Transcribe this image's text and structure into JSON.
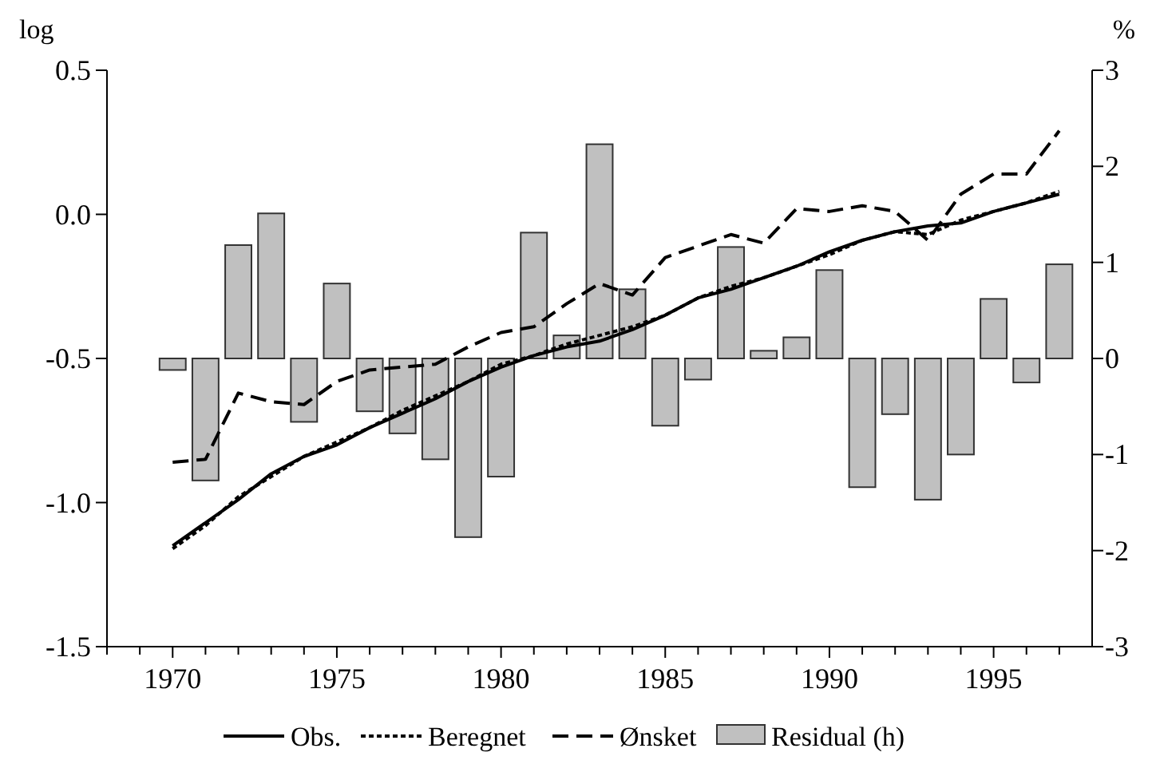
{
  "chart_data": {
    "type": "line",
    "ylabel": "log",
    "y2label": "%",
    "x": [
      1970,
      1971,
      1972,
      1973,
      1974,
      1975,
      1976,
      1977,
      1978,
      1979,
      1980,
      1981,
      1982,
      1983,
      1984,
      1985,
      1986,
      1987,
      1988,
      1989,
      1990,
      1991,
      1992,
      1993,
      1994,
      1995,
      1996,
      1997
    ],
    "series": [
      {
        "name": "Obs.",
        "line_style": "solid",
        "color": "#000000",
        "values": [
          -1.15,
          -1.07,
          -0.99,
          -0.9,
          -0.84,
          -0.8,
          -0.74,
          -0.69,
          -0.64,
          -0.58,
          -0.53,
          -0.49,
          -0.46,
          -0.44,
          -0.4,
          -0.35,
          -0.29,
          -0.26,
          -0.22,
          -0.18,
          -0.13,
          -0.09,
          -0.06,
          -0.04,
          -0.03,
          0.01,
          0.04,
          0.07
        ]
      },
      {
        "name": "Beregnet",
        "line_style": "dotted",
        "color": "#000000",
        "values": [
          -1.16,
          -1.08,
          -0.98,
          -0.91,
          -0.84,
          -0.79,
          -0.74,
          -0.68,
          -0.63,
          -0.58,
          -0.52,
          -0.49,
          -0.45,
          -0.42,
          -0.39,
          -0.35,
          -0.29,
          -0.25,
          -0.22,
          -0.18,
          -0.14,
          -0.09,
          -0.06,
          -0.07,
          -0.02,
          0.01,
          0.04,
          0.08
        ]
      },
      {
        "name": "Ønsket",
        "line_style": "dashed",
        "color": "#000000",
        "values": [
          -0.86,
          -0.85,
          -0.62,
          -0.65,
          -0.66,
          -0.58,
          -0.54,
          -0.53,
          -0.52,
          -0.46,
          -0.41,
          -0.39,
          -0.31,
          -0.24,
          -0.28,
          -0.15,
          -0.11,
          -0.07,
          -0.1,
          0.02,
          0.01,
          0.03,
          0.01,
          -0.09,
          0.07,
          0.14,
          0.14,
          0.29
        ]
      },
      {
        "name": "Residual (h)",
        "type": "bar",
        "axis": "y2",
        "color": "#c0c0c0",
        "values": [
          -0.12,
          -1.27,
          1.18,
          1.51,
          -0.66,
          0.78,
          -0.55,
          -0.78,
          -1.05,
          -1.86,
          -1.23,
          1.31,
          0.24,
          2.23,
          0.72,
          -0.7,
          -0.22,
          1.16,
          0.08,
          0.22,
          0.92,
          -1.34,
          -0.58,
          -1.47,
          -1.0,
          0.62,
          -0.25,
          0.98
        ]
      }
    ],
    "xlim": [
      1968,
      1998
    ],
    "xticks": [
      {
        "value": 1968,
        "label": null
      },
      {
        "value": 1969,
        "label": null
      },
      1970,
      {
        "value": 1971,
        "label": null
      },
      {
        "value": 1972,
        "label": null
      },
      {
        "value": 1973,
        "label": null
      },
      {
        "value": 1974,
        "label": null
      },
      1975,
      {
        "value": 1976,
        "label": null
      },
      {
        "value": 1977,
        "label": null
      },
      {
        "value": 1978,
        "label": null
      },
      {
        "value": 1979,
        "label": null
      },
      1980,
      {
        "value": 1981,
        "label": null
      },
      {
        "value": 1982,
        "label": null
      },
      {
        "value": 1983,
        "label": null
      },
      {
        "value": 1984,
        "label": null
      },
      1985,
      {
        "value": 1986,
        "label": null
      },
      {
        "value": 1987,
        "label": null
      },
      {
        "value": 1988,
        "label": null
      },
      {
        "value": 1989,
        "label": null
      },
      1990,
      {
        "value": 1991,
        "label": null
      },
      {
        "value": 1992,
        "label": null
      },
      {
        "value": 1993,
        "label": null
      },
      {
        "value": 1994,
        "label": null
      },
      1995,
      {
        "value": 1996,
        "label": null
      },
      {
        "value": 1997,
        "label": null
      }
    ],
    "ylim": [
      -1.5,
      0.5
    ],
    "yticks": [
      {
        "value": -1.5,
        "label": "-1.5"
      },
      {
        "value": -1.0,
        "label": "-1.0"
      },
      {
        "value": -0.5,
        "label": "-0.5"
      },
      {
        "value": 0,
        "label": "0.0"
      },
      {
        "value": 0.5,
        "label": "0.5"
      }
    ],
    "y2lim": [
      -3,
      3
    ],
    "y2ticks": [
      -3,
      -2,
      -1,
      0,
      1,
      2,
      3
    ],
    "legend": "bottom",
    "grid": false
  }
}
